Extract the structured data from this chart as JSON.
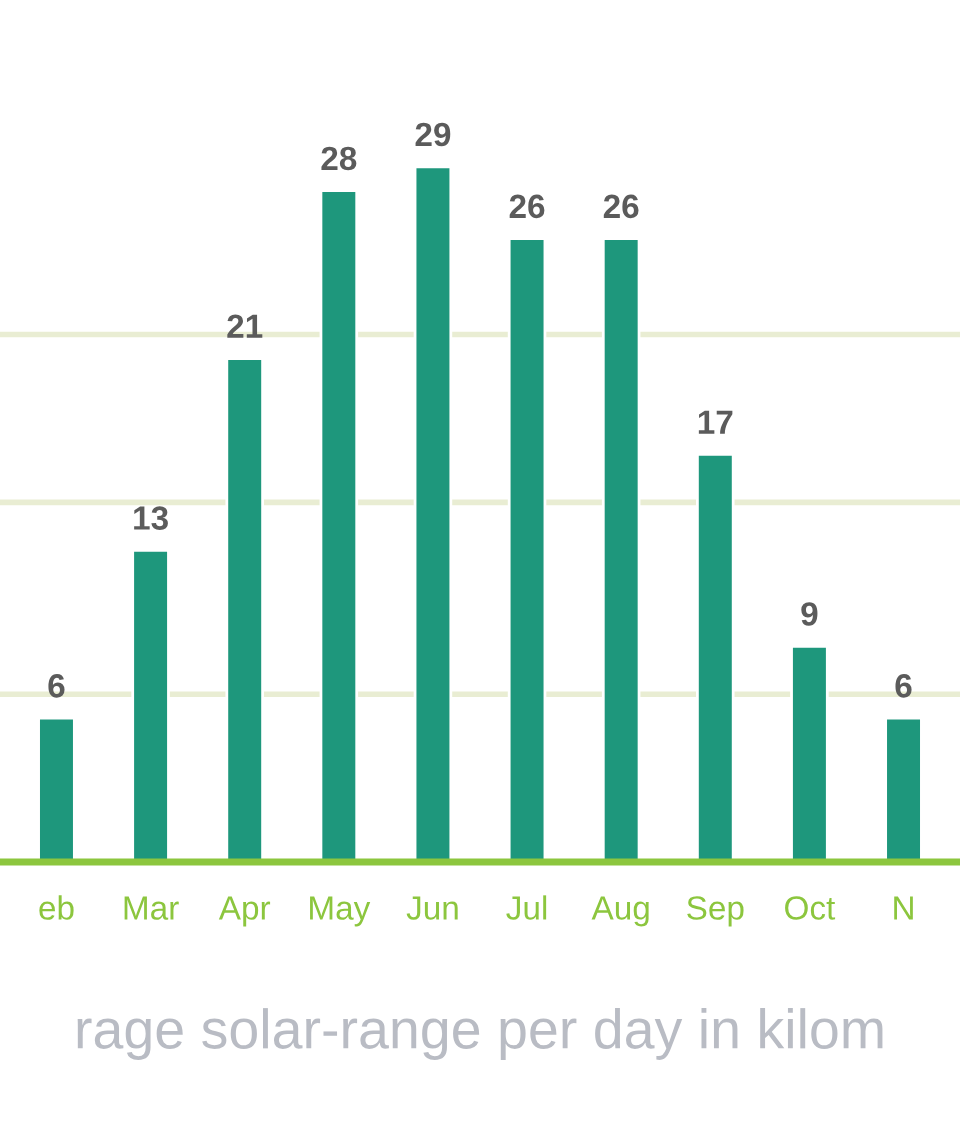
{
  "chart_data": {
    "type": "bar",
    "title": "rage solar-range per day in kilom",
    "categories": [
      "eb",
      "Mar",
      "Apr",
      "May",
      "Jun",
      "Jul",
      "Aug",
      "Sep",
      "Oct",
      "N"
    ],
    "values": [
      6,
      13,
      21,
      28,
      29,
      26,
      26,
      17,
      9,
      6
    ],
    "color": "#1e977c",
    "yticks": [
      {
        "value": 7,
        "label": null
      },
      {
        "value": 15,
        "label": null
      },
      {
        "value": 22,
        "label": null
      }
    ],
    "grid": "y",
    "data_labels": true,
    "tick_labels": "x"
  }
}
